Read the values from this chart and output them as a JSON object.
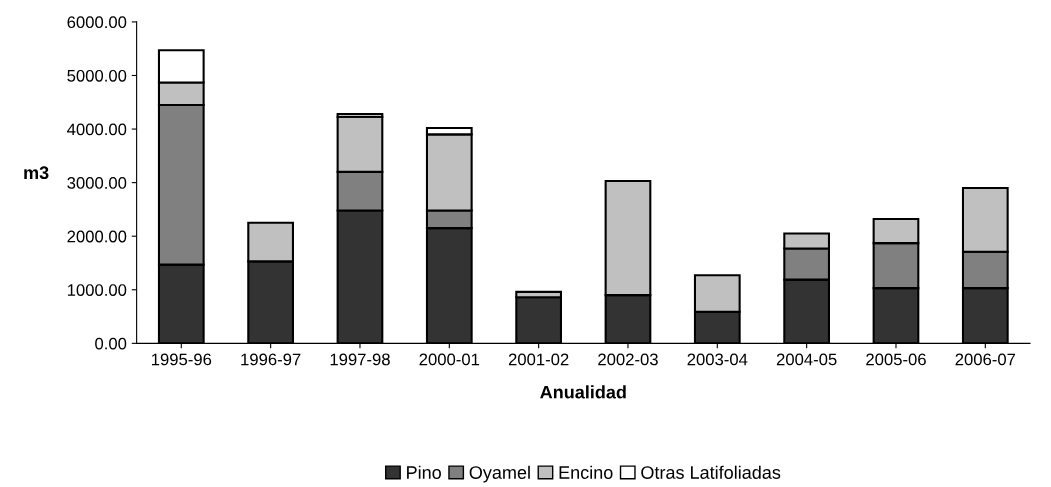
{
  "chart_data": {
    "type": "bar",
    "stacked": true,
    "xlabel": "Anualidad",
    "ylabel": "m3",
    "categories": [
      "1995-96",
      "1996-97",
      "1997-98",
      "2000-01",
      "2001-02",
      "2002-03",
      "2003-04",
      "2004-05",
      "2005-06",
      "2006-07"
    ],
    "series": [
      {
        "name": "Pino",
        "color": "#333333",
        "values": [
          1470,
          1530,
          2480,
          2150,
          860,
          900,
          590,
          1190,
          1030,
          1030
        ]
      },
      {
        "name": "Oyamel",
        "color": "#808080",
        "values": [
          2980,
          null,
          720,
          330,
          null,
          null,
          null,
          580,
          840,
          680
        ]
      },
      {
        "name": "Encino",
        "color": "#c0c0c0",
        "values": [
          420,
          720,
          1030,
          1420,
          100,
          2130,
          680,
          280,
          450,
          1190
        ]
      },
      {
        "name": "Otras Latifoliadas",
        "color": "#ffffff",
        "values": [
          600,
          null,
          50,
          120,
          null,
          null,
          null,
          null,
          null,
          null
        ]
      }
    ],
    "ylim": [
      0,
      6000
    ],
    "yticks": [
      {
        "value": 0,
        "label": "0.00"
      },
      {
        "value": 1000,
        "label": "1000.00"
      },
      {
        "value": 2000,
        "label": "2000.00"
      },
      {
        "value": 3000,
        "label": "3000.00"
      },
      {
        "value": 4000,
        "label": "4000.00"
      },
      {
        "value": 5000,
        "label": "5000.00"
      },
      {
        "value": 6000,
        "label": "6000.00"
      }
    ],
    "grid": false,
    "legend": "bottom"
  }
}
